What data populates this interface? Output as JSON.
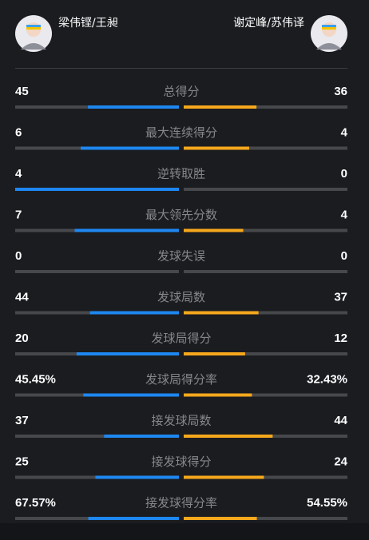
{
  "players": {
    "left": "梁伟铿/王昶",
    "right": "谢定峰/苏伟译"
  },
  "stats": [
    {
      "label": "总得分",
      "left": "45",
      "right": "36"
    },
    {
      "label": "最大连续得分",
      "left": "6",
      "right": "4"
    },
    {
      "label": "逆转取胜",
      "left": "4",
      "right": "0"
    },
    {
      "label": "最大领先分数",
      "left": "7",
      "right": "4"
    },
    {
      "label": "发球失误",
      "left": "0",
      "right": "0"
    },
    {
      "label": "发球局数",
      "left": "44",
      "right": "37"
    },
    {
      "label": "发球局得分",
      "left": "20",
      "right": "12"
    },
    {
      "label": "发球局得分率",
      "left": "45.45%",
      "right": "32.43%"
    },
    {
      "label": "接发球局数",
      "left": "37",
      "right": "44"
    },
    {
      "label": "接发球得分",
      "left": "25",
      "right": "24"
    },
    {
      "label": "接发球得分率",
      "left": "67.57%",
      "right": "54.55%"
    }
  ]
}
